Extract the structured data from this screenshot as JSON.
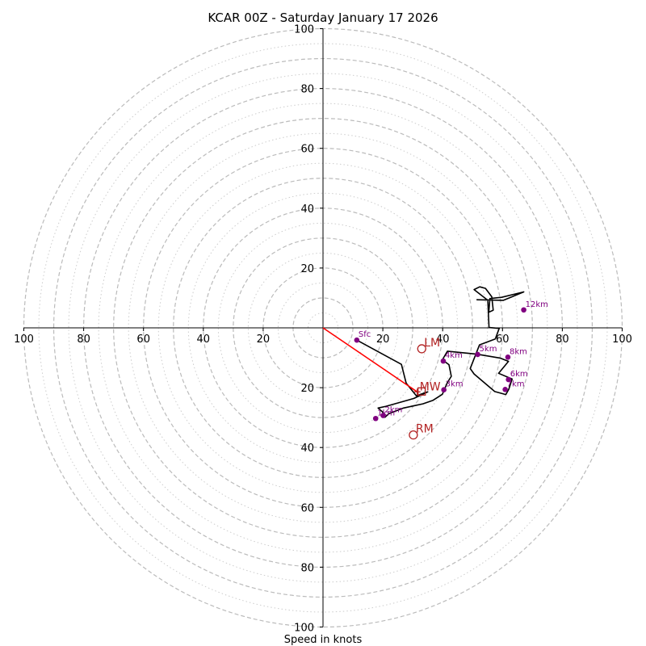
{
  "title": "KCAR 00Z - Saturday January 17 2026",
  "xlabel": "Speed in knots",
  "colors": {
    "hodograph": "#000000",
    "height_marker": "#800080",
    "motion": "#b22222",
    "shear_vector": "#ff0000",
    "ring_major": "#bbbbbb",
    "ring_minor": "#cccccc",
    "axis": "#000000"
  },
  "chart_data": {
    "type": "hodograph",
    "units": "knots",
    "axis_range": [
      -100,
      100
    ],
    "rings_major": [
      10,
      20,
      30,
      40,
      50,
      60,
      70,
      80,
      90,
      100
    ],
    "rings_minor": [
      5,
      15,
      25,
      35,
      45,
      55,
      65,
      75,
      85,
      95
    ],
    "x_tick_labels": [
      {
        "value": -100,
        "label": "100"
      },
      {
        "value": -80,
        "label": "80"
      },
      {
        "value": -60,
        "label": "60"
      },
      {
        "value": -40,
        "label": "40"
      },
      {
        "value": -20,
        "label": "20"
      },
      {
        "value": 20,
        "label": "20"
      },
      {
        "value": 40,
        "label": "40"
      },
      {
        "value": 60,
        "label": "60"
      },
      {
        "value": 80,
        "label": "80"
      },
      {
        "value": 100,
        "label": "100"
      }
    ],
    "y_tick_labels": [
      {
        "value": 100,
        "label": "100"
      },
      {
        "value": 80,
        "label": "80"
      },
      {
        "value": 60,
        "label": "60"
      },
      {
        "value": 40,
        "label": "40"
      },
      {
        "value": 20,
        "label": "20"
      },
      {
        "value": -20,
        "label": "20"
      },
      {
        "value": -40,
        "label": "40"
      },
      {
        "value": -60,
        "label": "60"
      },
      {
        "value": -80,
        "label": "80"
      },
      {
        "value": -100,
        "label": "100"
      }
    ],
    "hodograph_uv": [
      [
        11.3,
        -4.1
      ],
      [
        26.2,
        -12.2
      ],
      [
        27.8,
        -18.5
      ],
      [
        31.2,
        -22.7
      ],
      [
        35,
        -21.4
      ],
      [
        30.4,
        -23.6
      ],
      [
        21.1,
        -26.2
      ],
      [
        18.4,
        -26.8
      ],
      [
        19.9,
        -28.1
      ],
      [
        20.7,
        -29.9
      ],
      [
        22,
        -28.7
      ],
      [
        26.9,
        -26.8
      ],
      [
        33.4,
        -25.4
      ],
      [
        36.8,
        -24.2
      ],
      [
        39.9,
        -22.2
      ],
      [
        41.5,
        -18.4
      ],
      [
        42.9,
        -16.2
      ],
      [
        42.1,
        -12.3
      ],
      [
        39.9,
        -10.7
      ],
      [
        41.6,
        -7.8
      ],
      [
        51.4,
        -8.8
      ],
      [
        59.2,
        -10.1
      ],
      [
        62,
        -11.2
      ],
      [
        58.7,
        -15.2
      ],
      [
        63.2,
        -17.1
      ],
      [
        62.1,
        -20.5
      ],
      [
        61.1,
        -22.3
      ],
      [
        57.4,
        -21.3
      ],
      [
        50.5,
        -15.4
      ],
      [
        49.2,
        -13.6
      ],
      [
        52.3,
        -5.7
      ],
      [
        57.6,
        -3.7
      ],
      [
        58.9,
        -0.2
      ],
      [
        55.5,
        0.1
      ],
      [
        55.1,
        9.2
      ],
      [
        50.5,
        12.8
      ],
      [
        52.4,
        13.7
      ],
      [
        54.3,
        13.2
      ],
      [
        56.4,
        10.4
      ],
      [
        56.9,
        5.9
      ],
      [
        55.4,
        5.2
      ],
      [
        55.8,
        9.8
      ],
      [
        59.7,
        10.2
      ],
      [
        67.1,
        12
      ],
      [
        60.3,
        9.2
      ],
      [
        51.3,
        9.4
      ]
    ],
    "height_markers": [
      {
        "label": "Sfc",
        "u": 11.3,
        "v": -4.1
      },
      {
        "label": "1km",
        "u": 17.6,
        "v": -30.3
      },
      {
        "label": "2km",
        "u": 20.1,
        "v": -29.3
      },
      {
        "label": "3km",
        "u": 40.4,
        "v": -20.7
      },
      {
        "label": "4km",
        "u": 40.2,
        "v": -11.1
      },
      {
        "label": "5km",
        "u": 51.7,
        "v": -8.9
      },
      {
        "label": "6km",
        "u": 62,
        "v": -17.3
      },
      {
        "label": "7km",
        "u": 60.9,
        "v": -20.6
      },
      {
        "label": "8km",
        "u": 61.8,
        "v": -9.8
      },
      {
        "label": "12km",
        "u": 67.1,
        "v": 6
      }
    ],
    "storm_motion": [
      {
        "label": "LM",
        "u": 33,
        "v": -7
      },
      {
        "label": "RM",
        "u": 30.2,
        "v": -35.8
      },
      {
        "label": "MW",
        "u": 31.5,
        "v": -21.4
      }
    ],
    "shear_vector": {
      "from": [
        0,
        0
      ],
      "to": [
        31.5,
        -21.4
      ]
    }
  }
}
